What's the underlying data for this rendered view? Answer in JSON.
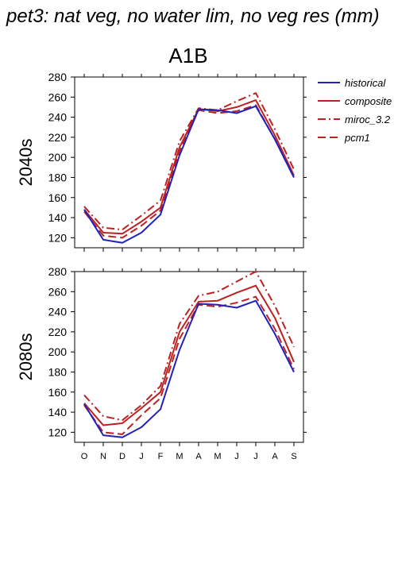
{
  "page_title": "pet3: nat veg, no water lim, no veg res (mm)",
  "scenario": "A1B",
  "legend": [
    "historical",
    "composite",
    "miroc_3.2",
    "pcm1"
  ],
  "colors": {
    "historical": "#2222bb",
    "scenario": "#bb2222"
  },
  "chart_data": [
    {
      "type": "line",
      "ylabel": "2040s",
      "categories": [
        "O",
        "N",
        "D",
        "J",
        "F",
        "M",
        "A",
        "M",
        "J",
        "J",
        "A",
        "S"
      ],
      "ylim": [
        110,
        280
      ],
      "yticks": [
        120,
        140,
        160,
        180,
        200,
        220,
        240,
        260,
        280
      ],
      "series": [
        {
          "name": "historical",
          "style": "solid",
          "values": [
            148,
            118,
            115,
            125,
            143,
            202,
            248,
            247,
            244,
            251,
            218,
            180
          ]
        },
        {
          "name": "composite",
          "style": "solid",
          "values": [
            148,
            125,
            124,
            136,
            150,
            210,
            248,
            246,
            250,
            257,
            222,
            182
          ]
        },
        {
          "name": "miroc_3.2",
          "style": "dashdot",
          "values": [
            151,
            130,
            128,
            142,
            157,
            216,
            249,
            247,
            256,
            264,
            228,
            188
          ]
        },
        {
          "name": "pcm1",
          "style": "dashed",
          "values": [
            146,
            122,
            120,
            132,
            147,
            206,
            247,
            244,
            246,
            252,
            218,
            180
          ]
        }
      ]
    },
    {
      "type": "line",
      "ylabel": "2080s",
      "categories": [
        "O",
        "N",
        "D",
        "J",
        "F",
        "M",
        "A",
        "M",
        "J",
        "J",
        "A",
        "S"
      ],
      "ylim": [
        110,
        280
      ],
      "yticks": [
        120,
        140,
        160,
        180,
        200,
        220,
        240,
        260,
        280
      ],
      "series": [
        {
          "name": "historical",
          "style": "solid",
          "values": [
            148,
            117,
            115,
            125,
            143,
            202,
            248,
            247,
            244,
            251,
            218,
            180
          ]
        },
        {
          "name": "composite",
          "style": "solid",
          "values": [
            149,
            127,
            129,
            144,
            160,
            220,
            250,
            251,
            259,
            266,
            234,
            190
          ]
        },
        {
          "name": "miroc_3.2",
          "style": "dashdot",
          "values": [
            157,
            136,
            132,
            147,
            166,
            228,
            256,
            260,
            270,
            280,
            246,
            205
          ]
        },
        {
          "name": "pcm1",
          "style": "dashed",
          "values": [
            147,
            120,
            118,
            137,
            154,
            213,
            247,
            245,
            249,
            255,
            223,
            183
          ]
        }
      ]
    }
  ]
}
